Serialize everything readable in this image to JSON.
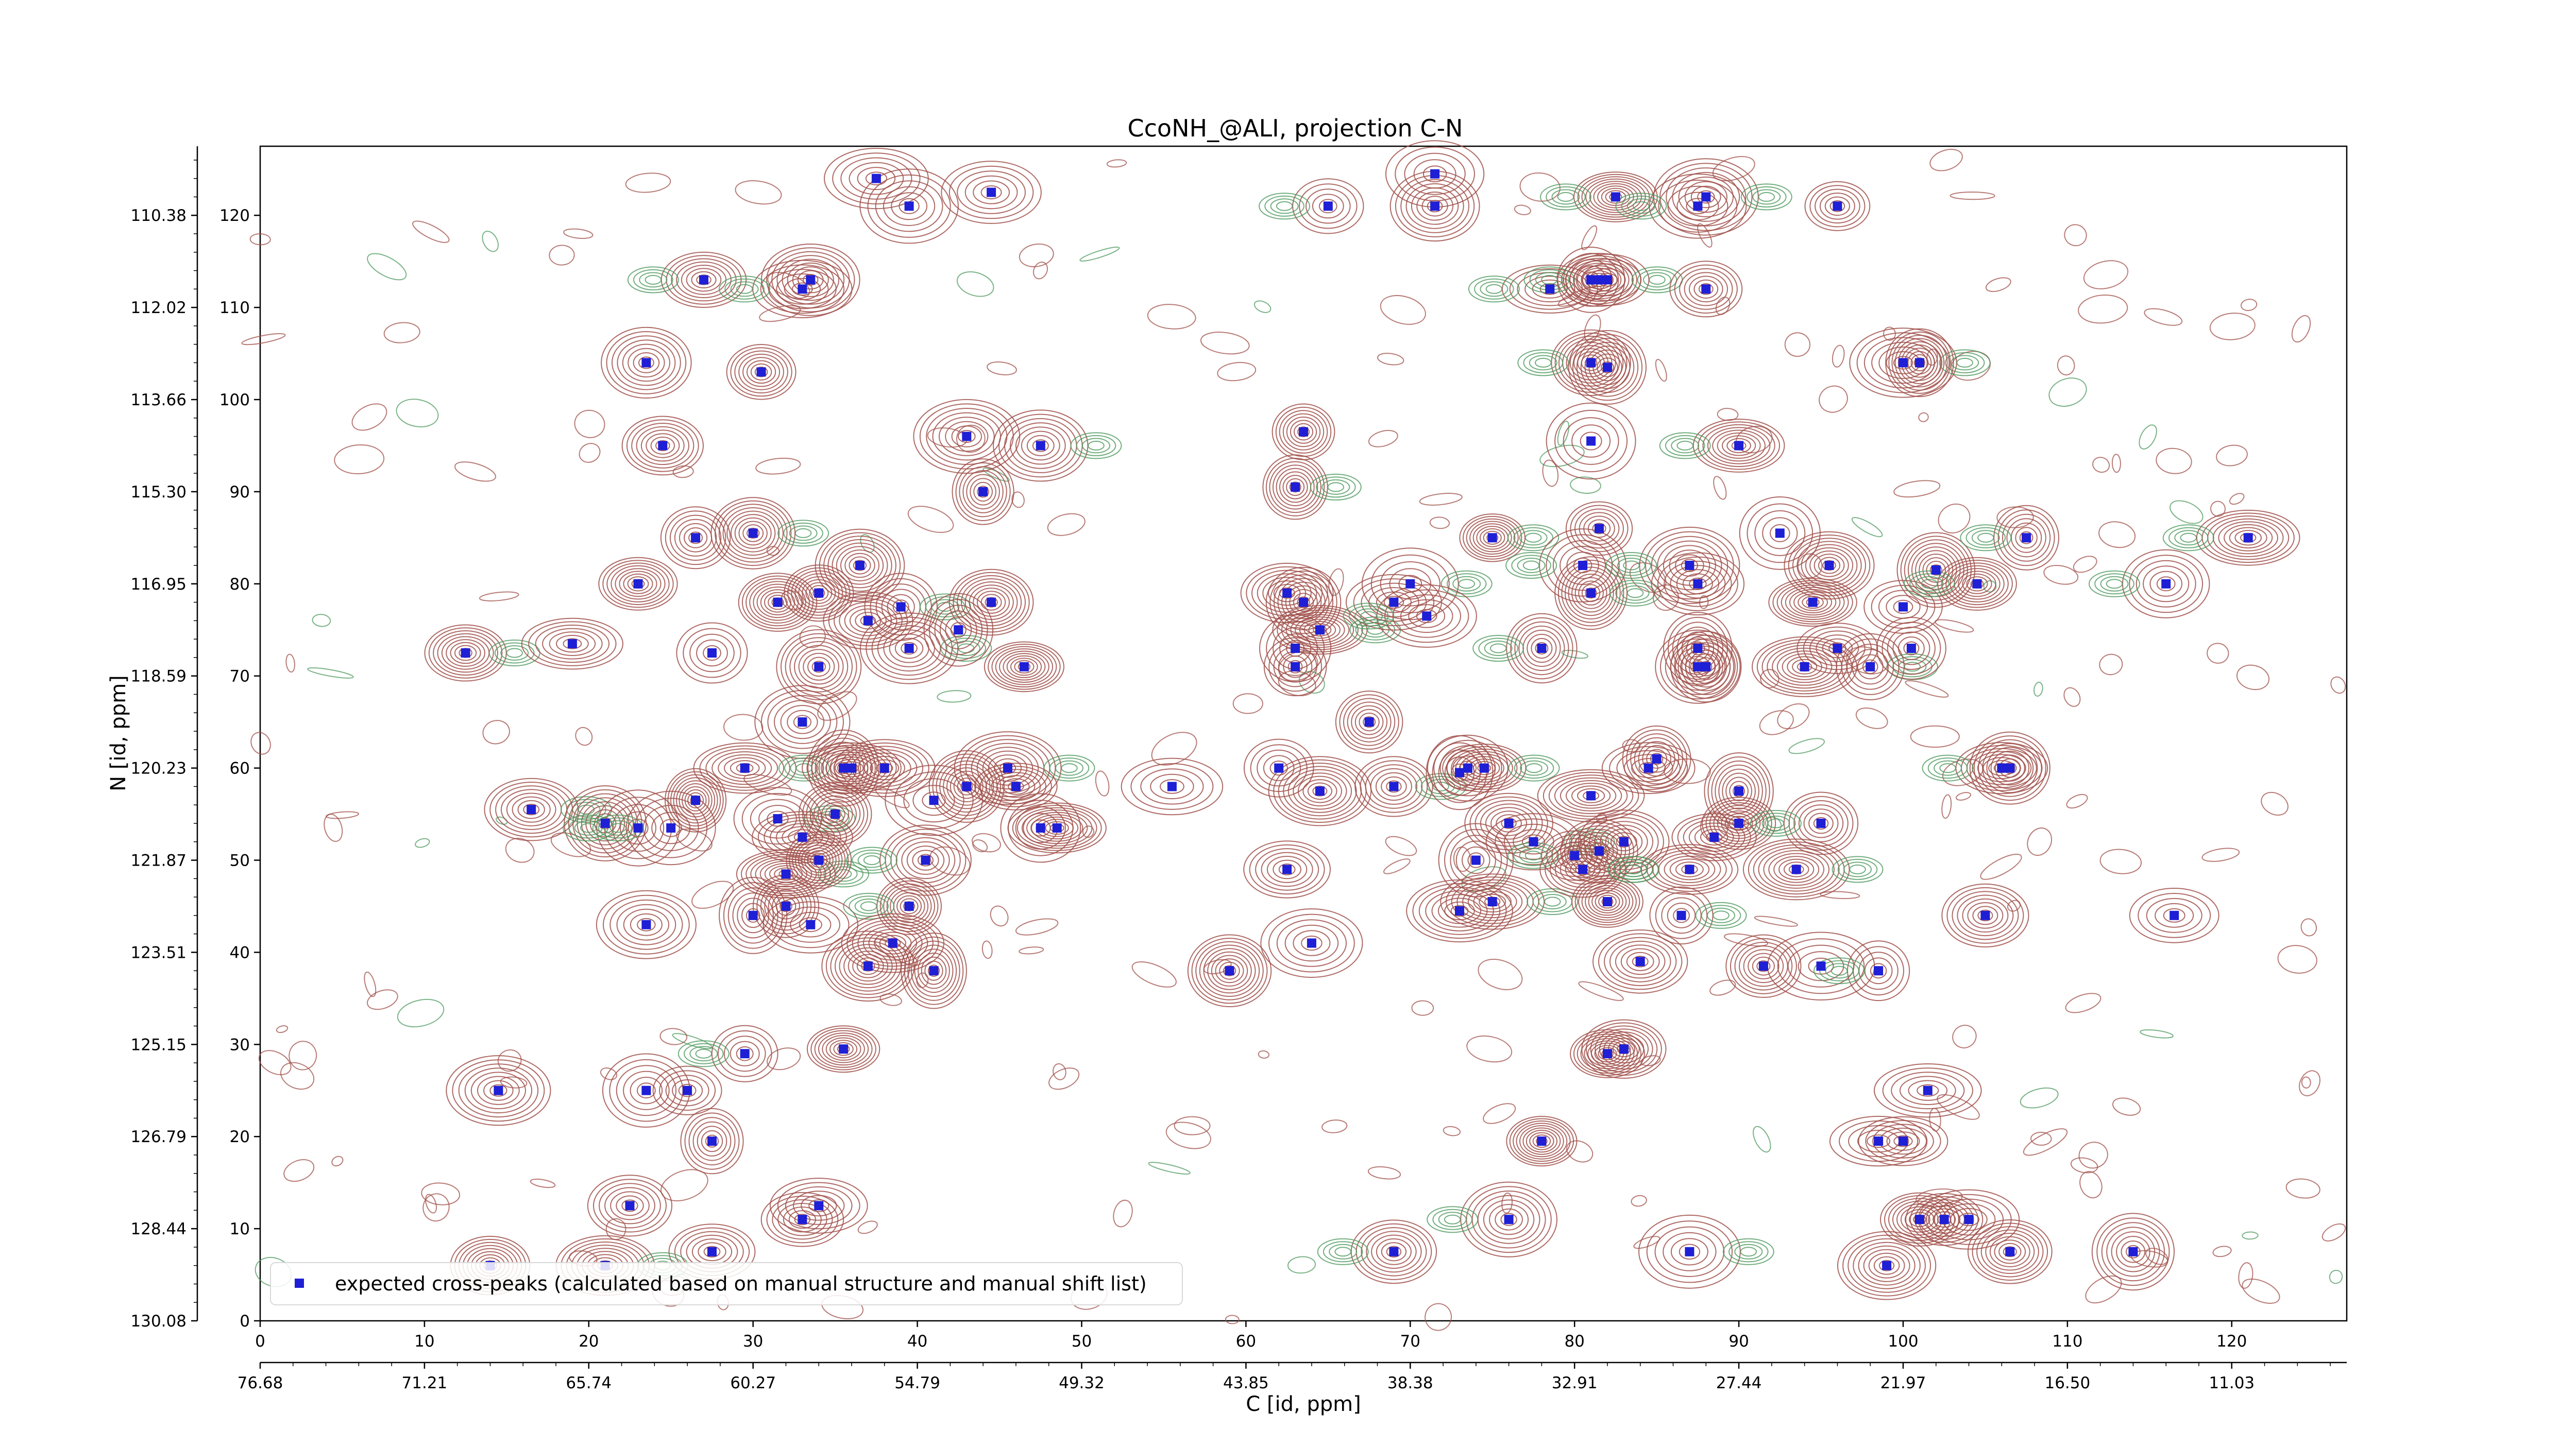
{
  "chart_data": {
    "type": "scatter",
    "title": "CcoNH_@ALI, projection C-N",
    "xlabel": "C [id, ppm]",
    "ylabel": "N [id, ppm]",
    "xlim": [
      0,
      127
    ],
    "ylim": [
      0,
      127.5
    ],
    "x_ticks_id": [
      "0",
      "10",
      "20",
      "30",
      "40",
      "50",
      "60",
      "70",
      "80",
      "90",
      "100",
      "110",
      "120"
    ],
    "x_ticks_ppm": [
      "76.68",
      "71.21",
      "65.74",
      "60.27",
      "54.79",
      "49.32",
      "43.85",
      "38.38",
      "32.91",
      "27.44",
      "21.97",
      "16.50",
      "11.03"
    ],
    "y_ticks_id": [
      "0",
      "10",
      "20",
      "30",
      "40",
      "50",
      "60",
      "70",
      "80",
      "90",
      "100",
      "110",
      "120"
    ],
    "y_ticks_ppm": [
      "130.08",
      "128.44",
      "126.79",
      "125.15",
      "123.51",
      "121.87",
      "120.23",
      "118.59",
      "116.95",
      "115.30",
      "113.66",
      "112.02",
      "110.38"
    ],
    "legend": {
      "label": "expected cross-peaks (calculated based on manual structure and manual shift list)",
      "position": "lower-left"
    },
    "colors": {
      "positive_contour": "#a0504a",
      "negative_contour": "#4f9a5f",
      "marker": "#1f1fd6"
    },
    "grid": false,
    "series": [
      {
        "name": "expected cross-peaks (calculated based on manual structure and manual shift list)",
        "points": [
          [
            27,
            113
          ],
          [
            33.5,
            113
          ],
          [
            33,
            112
          ],
          [
            23.5,
            104
          ],
          [
            30.5,
            103
          ],
          [
            24.5,
            95
          ],
          [
            26.5,
            85
          ],
          [
            30,
            85.5
          ],
          [
            23,
            80
          ],
          [
            31.5,
            78
          ],
          [
            34,
            79
          ],
          [
            36.5,
            82
          ],
          [
            37,
            76
          ],
          [
            39,
            77.5
          ],
          [
            39.5,
            73
          ],
          [
            42.5,
            75
          ],
          [
            44.5,
            78
          ],
          [
            46.5,
            71
          ],
          [
            12.5,
            72.5
          ],
          [
            19,
            73.5
          ],
          [
            27.5,
            72.5
          ],
          [
            34,
            71
          ],
          [
            33,
            65
          ],
          [
            29.5,
            60
          ],
          [
            35.5,
            60
          ],
          [
            36,
            60
          ],
          [
            38,
            60
          ],
          [
            16.5,
            55.5
          ],
          [
            21,
            54
          ],
          [
            23,
            53.5
          ],
          [
            25,
            53.5
          ],
          [
            26.5,
            56.5
          ],
          [
            31.5,
            54.5
          ],
          [
            33,
            52.5
          ],
          [
            35,
            55
          ],
          [
            45.5,
            60
          ],
          [
            46,
            58
          ],
          [
            47.5,
            53.5
          ],
          [
            48.5,
            53.5
          ],
          [
            43,
            58
          ],
          [
            41,
            56.5
          ],
          [
            32,
            48.5
          ],
          [
            34,
            50
          ],
          [
            40.5,
            50
          ],
          [
            30,
            44
          ],
          [
            32,
            45
          ],
          [
            33.5,
            43
          ],
          [
            39.5,
            45
          ],
          [
            37,
            38.5
          ],
          [
            38.5,
            41
          ],
          [
            41,
            38
          ],
          [
            23.5,
            43
          ],
          [
            29.5,
            29
          ],
          [
            35.5,
            29.5
          ],
          [
            14.5,
            25
          ],
          [
            23.5,
            25
          ],
          [
            27.5,
            19.5
          ],
          [
            22.5,
            12.5
          ],
          [
            26,
            25
          ],
          [
            33,
            11
          ],
          [
            34,
            12.5
          ],
          [
            27.5,
            7.5
          ],
          [
            21,
            6
          ],
          [
            14,
            6
          ],
          [
            37.5,
            124
          ],
          [
            39.5,
            121
          ],
          [
            44.5,
            122.5
          ],
          [
            43,
            96
          ],
          [
            44,
            90
          ],
          [
            47.5,
            95
          ],
          [
            63.5,
            96.5
          ],
          [
            63,
            90.5
          ],
          [
            59,
            38
          ],
          [
            62.5,
            79
          ],
          [
            63.5,
            78
          ],
          [
            64.5,
            75
          ],
          [
            63,
            73
          ],
          [
            63,
            71
          ],
          [
            69,
            78
          ],
          [
            70,
            80
          ],
          [
            71,
            76.5
          ],
          [
            67.5,
            65
          ],
          [
            62,
            60
          ],
          [
            55.5,
            58
          ],
          [
            64.5,
            57.5
          ],
          [
            69,
            58
          ],
          [
            73,
            59.5
          ],
          [
            74.5,
            60
          ],
          [
            73.5,
            60
          ],
          [
            62.5,
            49
          ],
          [
            74,
            50
          ],
          [
            73,
            44.5
          ],
          [
            75,
            45.5
          ],
          [
            64,
            41
          ],
          [
            71.5,
            124.5
          ],
          [
            71.5,
            121
          ],
          [
            65,
            121
          ],
          [
            82.5,
            122
          ],
          [
            78.5,
            112
          ],
          [
            81,
            113
          ],
          [
            81.5,
            113
          ],
          [
            82,
            113
          ],
          [
            88,
            112
          ],
          [
            81,
            104
          ],
          [
            82,
            103.5
          ],
          [
            81,
            95.5
          ],
          [
            90,
            95
          ],
          [
            96,
            121
          ],
          [
            88,
            122
          ],
          [
            87.5,
            121
          ],
          [
            75,
            85
          ],
          [
            81.5,
            86
          ],
          [
            80.5,
            82
          ],
          [
            81,
            79
          ],
          [
            78,
            73
          ],
          [
            87,
            82
          ],
          [
            87.5,
            80
          ],
          [
            87.5,
            73
          ],
          [
            87.5,
            71
          ],
          [
            88,
            71
          ],
          [
            92.5,
            85.5
          ],
          [
            94.5,
            78
          ],
          [
            95.5,
            82
          ],
          [
            96,
            73
          ],
          [
            94,
            71
          ],
          [
            98,
            71
          ],
          [
            100,
            77.5
          ],
          [
            100.5,
            73
          ],
          [
            102,
            81.5
          ],
          [
            100,
            104
          ],
          [
            101,
            104
          ],
          [
            107.5,
            85
          ],
          [
            104.5,
            80
          ],
          [
            116,
            80
          ],
          [
            121,
            85
          ],
          [
            81,
            57
          ],
          [
            84.5,
            60
          ],
          [
            85,
            61
          ],
          [
            76,
            54
          ],
          [
            77.5,
            52
          ],
          [
            80,
            50.5
          ],
          [
            80.5,
            49
          ],
          [
            81.5,
            51
          ],
          [
            82,
            45.5
          ],
          [
            83,
            52
          ],
          [
            88.5,
            52.5
          ],
          [
            90,
            54
          ],
          [
            90,
            57.5
          ],
          [
            87,
            49
          ],
          [
            86.5,
            44
          ],
          [
            84,
            39
          ],
          [
            95,
            54
          ],
          [
            93.5,
            49
          ],
          [
            91.5,
            38.5
          ],
          [
            95,
            38.5
          ],
          [
            98.5,
            38
          ],
          [
            105,
            44
          ],
          [
            106,
            60
          ],
          [
            106.5,
            60
          ],
          [
            116.5,
            44
          ],
          [
            82,
            29
          ],
          [
            83,
            29.5
          ],
          [
            78,
            19.5
          ],
          [
            98.5,
            19.5
          ],
          [
            100,
            19.5
          ],
          [
            101.5,
            25
          ],
          [
            76,
            11
          ],
          [
            69,
            7.5
          ],
          [
            87,
            7.5
          ],
          [
            101,
            11
          ],
          [
            102.5,
            11
          ],
          [
            104,
            11
          ],
          [
            99,
            6
          ],
          [
            106.5,
            7.5
          ],
          [
            114,
            7.5
          ]
        ]
      }
    ]
  }
}
